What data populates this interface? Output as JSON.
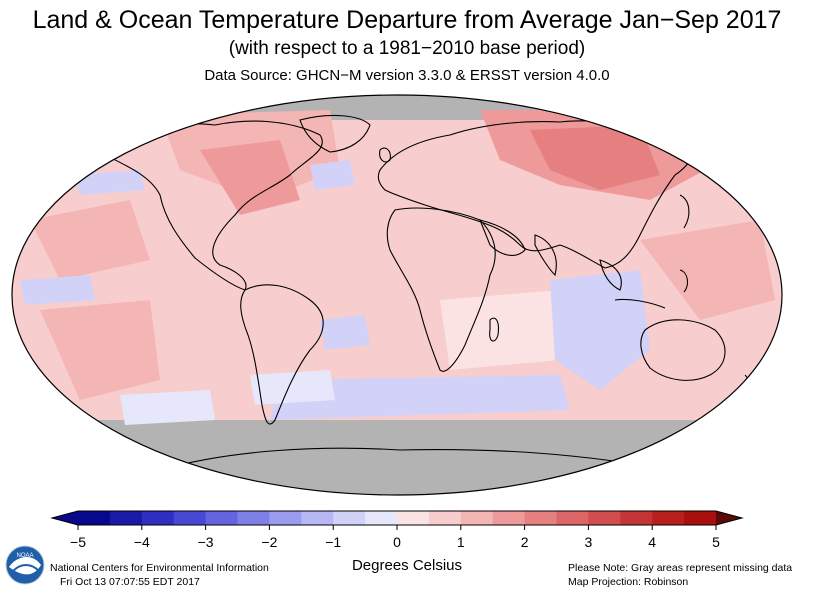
{
  "header": {
    "title": "Land & Ocean Temperature Departure from Average Jan−Sep 2017",
    "subtitle": "(with respect to a 1981−2010 base period)",
    "source": "Data Source: GHCN−M version 3.3.0 & ERSST version 4.0.0"
  },
  "map": {
    "projection": "Robinson",
    "missing_color": "#b3b3b3",
    "land_outline_color": "#000000"
  },
  "colorbar": {
    "min": -5,
    "max": 5,
    "ticks": [
      "−5",
      "−4",
      "−3",
      "−2",
      "−1",
      "0",
      "1",
      "2",
      "3",
      "4",
      "5"
    ],
    "colors": [
      "#08088c",
      "#1a1aa8",
      "#2f2fc2",
      "#4848d4",
      "#6464e0",
      "#7f7fe8",
      "#9b9bef",
      "#b7b7f4",
      "#d2d2f8",
      "#e7e7fb",
      "#fbe3e3",
      "#f8cdcd",
      "#f4b5b5",
      "#ee9a9a",
      "#e68080",
      "#dd6666",
      "#d24d4d",
      "#c63535",
      "#b82020",
      "#a80f0f"
    ],
    "units": "Degrees Celsius"
  },
  "footer": {
    "org": "National Centers for Environmental Information",
    "timestamp": "Fri Oct 13 07:07:55 EDT 2017",
    "note": "Please Note: Gray areas represent missing data",
    "projection": "Map Projection: Robinson",
    "logo_text": "NOAA"
  }
}
